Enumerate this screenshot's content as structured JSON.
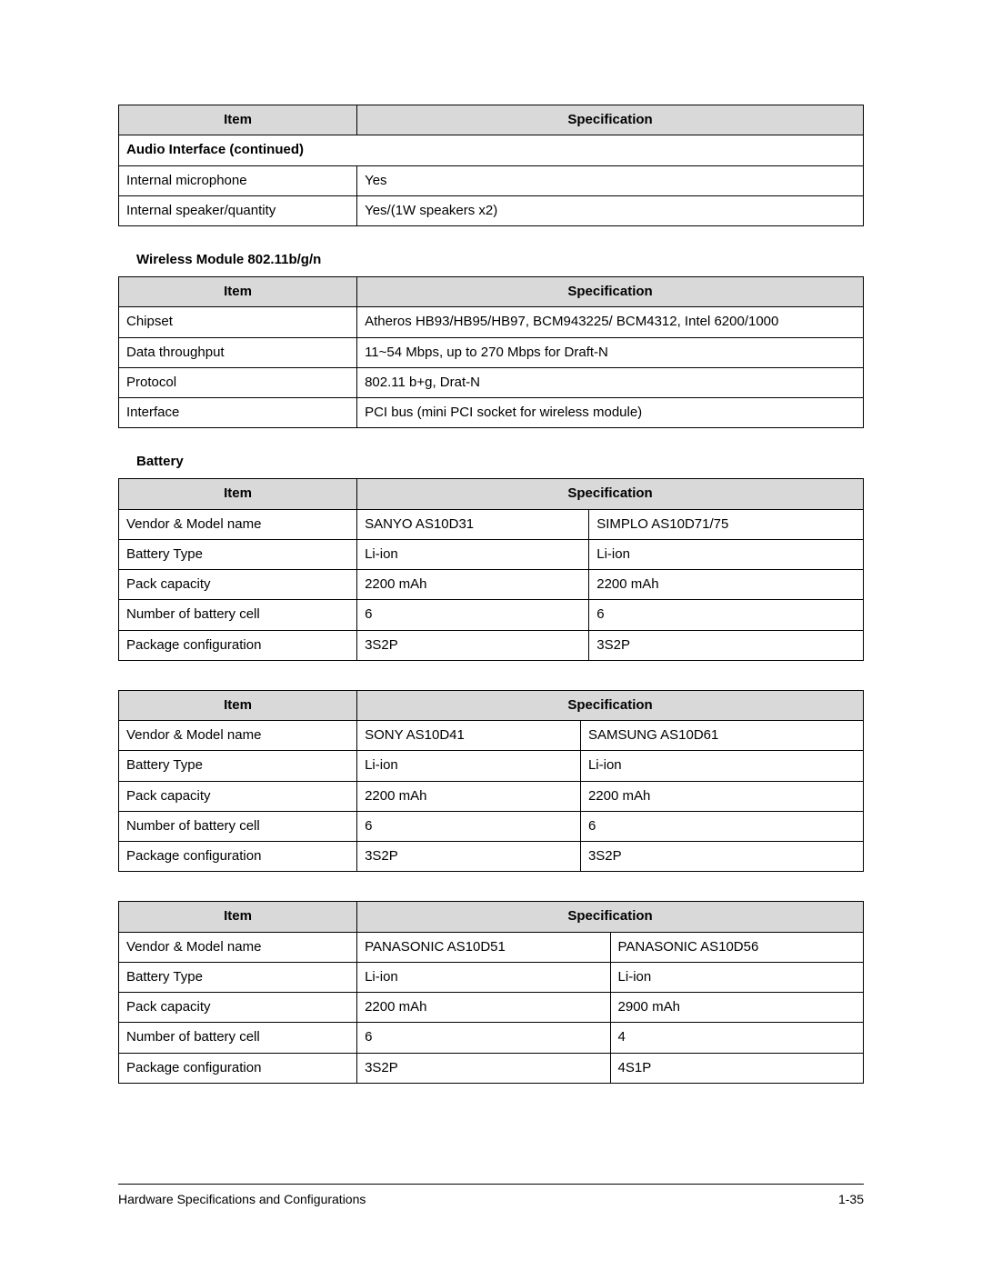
{
  "headers": {
    "item": "Item",
    "spec": "Specification"
  },
  "audio_table": {
    "section_title": "Audio Interface (continued)",
    "rows": [
      {
        "item": "Internal microphone",
        "spec": "Yes"
      },
      {
        "item": "Internal speaker/quantity",
        "spec": "Yes/(1W speakers x2)"
      }
    ]
  },
  "wireless": {
    "title": "Wireless Module 802.11b/g/n",
    "rows": [
      {
        "item": "Chipset",
        "spec": "Atheros HB93/HB95/HB97, BCM943225/ BCM4312, Intel 6200/1000"
      },
      {
        "item": "Data throughput",
        "spec": "11~54 Mbps, up to 270 Mbps for Draft-N"
      },
      {
        "item": "Protocol",
        "spec": "802.11 b+g, Drat-N"
      },
      {
        "item": "Interface",
        "spec": "PCI bus (mini PCI socket for wireless module)"
      }
    ]
  },
  "battery_title": "Battery",
  "battery_tables": [
    {
      "rows": [
        {
          "item": "Vendor & Model name",
          "c1": "SANYO AS10D31",
          "c2": "SIMPLO AS10D71/75"
        },
        {
          "item": "Battery Type",
          "c1": "Li-ion",
          "c2": "Li-ion"
        },
        {
          "item": "Pack capacity",
          "c1": "2200 mAh",
          "c2": "2200 mAh"
        },
        {
          "item": "Number of battery cell",
          "c1": "6",
          "c2": "6"
        },
        {
          "item": "Package configuration",
          "c1": "3S2P",
          "c2": "3S2P"
        }
      ]
    },
    {
      "rows": [
        {
          "item": "Vendor & Model name",
          "c1": "SONY AS10D41",
          "c2": "SAMSUNG AS10D61"
        },
        {
          "item": "Battery Type",
          "c1": "Li-ion",
          "c2": "Li-ion"
        },
        {
          "item": "Pack capacity",
          "c1": "2200 mAh",
          "c2": "2200 mAh"
        },
        {
          "item": "Number of battery cell",
          "c1": "6",
          "c2": "6"
        },
        {
          "item": "Package configuration",
          "c1": "3S2P",
          "c2": "3S2P"
        }
      ]
    },
    {
      "rows": [
        {
          "item": "Vendor & Model name",
          "c1": "PANASONIC AS10D51",
          "c2": "PANASONIC AS10D56"
        },
        {
          "item": "Battery Type",
          "c1": "Li-ion",
          "c2": "Li-ion"
        },
        {
          "item": "Pack capacity",
          "c1": "2200 mAh",
          "c2": "2900 mAh"
        },
        {
          "item": "Number of battery cell",
          "c1": "6",
          "c2": "4"
        },
        {
          "item": "Package configuration",
          "c1": "3S2P",
          "c2": "4S1P"
        }
      ]
    }
  ],
  "footer": {
    "left": "Hardware Specifications and Configurations",
    "right": "1-35"
  }
}
